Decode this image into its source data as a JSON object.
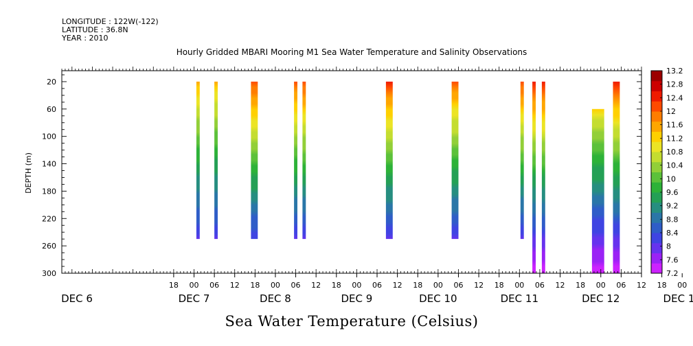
{
  "meta": {
    "longitude": "LONGITUDE : 122W(-122)",
    "latitude": "LATITUDE : 36.8N",
    "year": "YEAR : 2010"
  },
  "chart_data": {
    "type": "heatmap",
    "title": "Hourly Gridded MBARI Mooring M1 Sea Water Temperature and Salinity Observations",
    "xlabel": "Sea Water Temperature (Celsius)",
    "ylabel": "DEPTH (m)",
    "xlim": [
      -39,
      132
    ],
    "ylim": [
      300,
      4
    ],
    "y_ticks": [
      20,
      60,
      100,
      140,
      180,
      220,
      260,
      300
    ],
    "hour_tick_labels": [
      "18",
      "00",
      "06",
      "12",
      "18",
      "00",
      "06",
      "12",
      "18",
      "00",
      "06",
      "12",
      "18",
      "00",
      "06",
      "12",
      "18",
      "00",
      "06",
      "12",
      "18",
      "00",
      "06",
      "12",
      "18",
      "00",
      "06",
      "12",
      "18",
      "00",
      "06",
      "12"
    ],
    "day_labels": [
      "DEC  6",
      "DEC  7",
      "DEC  8",
      "DEC  9",
      "DEC 10",
      "DEC 11",
      "DEC 12",
      "DEC 13"
    ],
    "colorbar": {
      "levels": [
        7.2,
        7.6,
        8,
        8.4,
        8.8,
        9.2,
        9.6,
        10,
        10.4,
        10.8,
        11.2,
        11.6,
        12,
        12.4,
        12.8,
        13.2
      ],
      "colors": [
        "#cc22ff",
        "#9a22f5",
        "#6633ee",
        "#3f44e2",
        "#2f5dc8",
        "#2a76a8",
        "#268e80",
        "#24a055",
        "#2db238",
        "#5cc13a",
        "#92cf38",
        "#c4dd30",
        "#ece425",
        "#ffd000",
        "#ffa600",
        "#ff7d00",
        "#ff4a00",
        "#ef1a00",
        "#cc0000",
        "#9c0000"
      ]
    },
    "columns": [
      {
        "x_from": 0.7,
        "x_to": 1.7,
        "top": 20,
        "bottom": 250,
        "t_top": 11.5,
        "t_bottom": 8.1
      },
      {
        "x_from": 6.0,
        "x_to": 7.0,
        "top": 20,
        "bottom": 250,
        "t_top": 11.4,
        "t_bottom": 8.1
      },
      {
        "x_from": 16.8,
        "x_to": 18.8,
        "top": 20,
        "bottom": 250,
        "t_top": 12.2,
        "t_bottom": 8.2
      },
      {
        "x_from": 29.5,
        "x_to": 30.5,
        "top": 20,
        "bottom": 250,
        "t_top": 12.1,
        "t_bottom": 8.1
      },
      {
        "x_from": 32.0,
        "x_to": 33.0,
        "top": 20,
        "bottom": 250,
        "t_top": 12.2,
        "t_bottom": 8.1
      },
      {
        "x_from": 56.6,
        "x_to": 58.6,
        "top": 20,
        "bottom": 250,
        "t_top": 12.3,
        "t_bottom": 8.1
      },
      {
        "x_from": 76.0,
        "x_to": 78.0,
        "top": 20,
        "bottom": 250,
        "t_top": 12.0,
        "t_bottom": 8.1
      },
      {
        "x_from": 96.3,
        "x_to": 97.3,
        "top": 20,
        "bottom": 250,
        "t_top": 12.2,
        "t_bottom": 8.1
      },
      {
        "x_from": 99.8,
        "x_to": 100.8,
        "top": 20,
        "bottom": 300,
        "t_top": 12.4,
        "t_bottom": 7.3
      },
      {
        "x_from": 102.6,
        "x_to": 103.6,
        "top": 20,
        "bottom": 300,
        "t_top": 12.4,
        "t_bottom": 7.3
      },
      {
        "x_from": 117.4,
        "x_to": 121.0,
        "top": 60,
        "bottom": 300,
        "t_top": 11.2,
        "t_bottom": 7.3
      },
      {
        "x_from": 123.6,
        "x_to": 125.6,
        "top": 20,
        "bottom": 300,
        "t_top": 12.3,
        "t_bottom": 7.3
      }
    ]
  }
}
